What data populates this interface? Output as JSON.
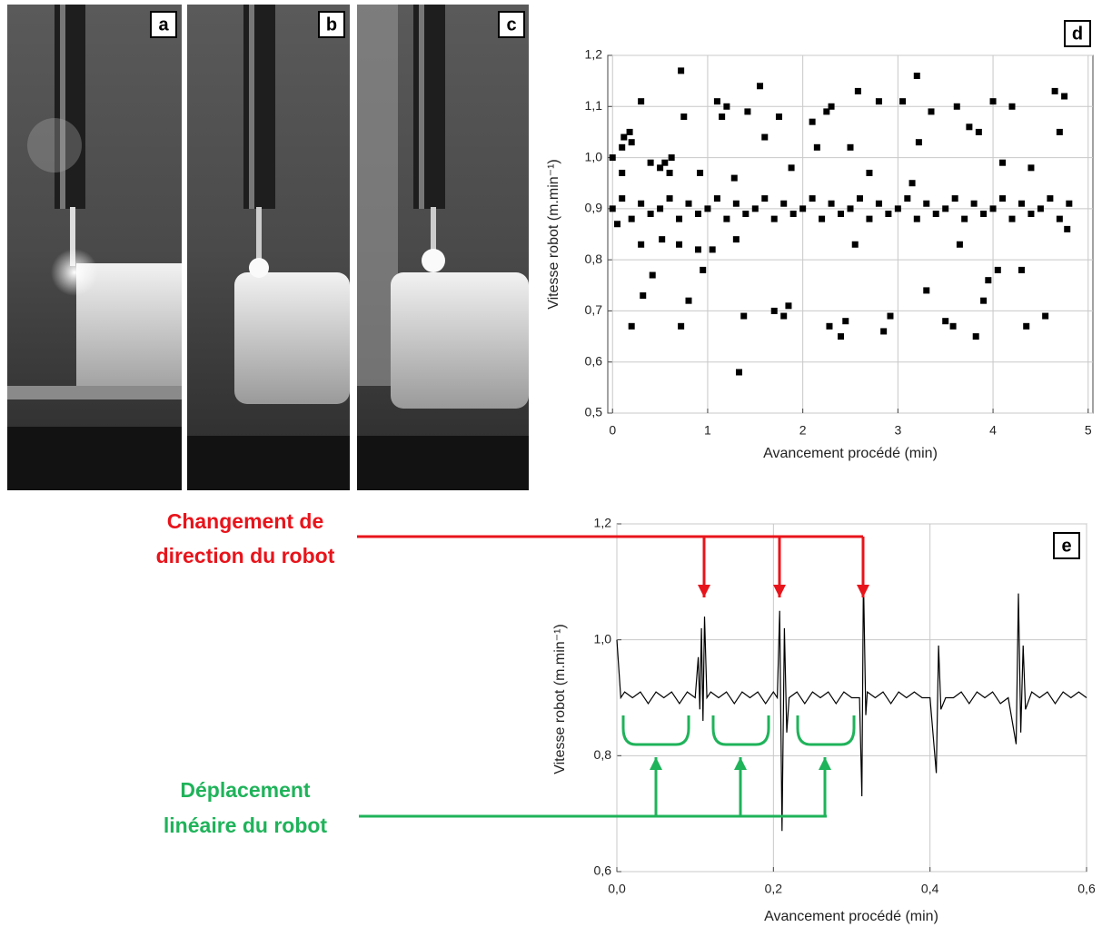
{
  "photos": {
    "labels": [
      "a",
      "b",
      "c"
    ]
  },
  "annotations": {
    "red": [
      "Changement de",
      "direction du robot"
    ],
    "green": [
      "Déplacement",
      "linéaire du robot"
    ]
  },
  "chart_data": [
    {
      "type": "scatter",
      "panel_label": "d",
      "xlabel": "Avancement procédé (min)",
      "ylabel": "Vitesse robot (m.min⁻¹)",
      "color": "#000000",
      "grid": true,
      "xlim": [
        -0.05,
        5.05
      ],
      "ylim": [
        0.5,
        1.2
      ],
      "xticks": [
        0,
        1,
        2,
        3,
        4,
        5
      ],
      "yticks": [
        {
          "value": 0.5,
          "label": "0,5"
        },
        {
          "value": 0.6,
          "label": "0,6"
        },
        {
          "value": 0.7,
          "label": "0,7"
        },
        {
          "value": 0.8,
          "label": "0,8"
        },
        {
          "value": 0.9,
          "label": "0,9"
        },
        {
          "value": 1.0,
          "label": "1,0"
        },
        {
          "value": 1.1,
          "label": "1,1"
        },
        {
          "value": 1.2,
          "label": "1,2"
        }
      ],
      "x": [
        0,
        0.1,
        0.2,
        0.3,
        0.4,
        0.5,
        0.6,
        0.7,
        0.8,
        0.9,
        1.0,
        1.1,
        1.2,
        1.3,
        1.4,
        1.5,
        1.6,
        1.7,
        1.8,
        1.9,
        2.0,
        2.1,
        2.2,
        2.3,
        2.4,
        2.5,
        2.6,
        2.7,
        2.8,
        2.9,
        3.0,
        3.1,
        3.2,
        3.3,
        3.4,
        3.5,
        3.6,
        3.7,
        3.8,
        3.9,
        4.0,
        4.1,
        4.2,
        4.3,
        4.4,
        4.5,
        4.6,
        4.7,
        4.8,
        0.0,
        0.05,
        0.1,
        0.1,
        0.12,
        0.18,
        0.2,
        0.2,
        0.3,
        0.3,
        0.32,
        0.4,
        0.42,
        0.5,
        0.52,
        0.55,
        0.6,
        0.62,
        0.7,
        0.72,
        0.72,
        0.75,
        0.8,
        0.9,
        0.92,
        0.95,
        1.05,
        1.1,
        1.15,
        1.2,
        1.28,
        1.3,
        1.33,
        1.38,
        1.42,
        1.55,
        1.6,
        1.7,
        1.75,
        1.8,
        1.85,
        1.88,
        2.1,
        2.15,
        2.25,
        2.28,
        2.3,
        2.4,
        2.45,
        2.5,
        2.55,
        2.58,
        2.7,
        2.8,
        2.85,
        2.92,
        3.05,
        3.15,
        3.2,
        3.22,
        3.3,
        3.35,
        3.5,
        3.58,
        3.62,
        3.65,
        3.75,
        3.82,
        3.85,
        3.9,
        3.95,
        4.0,
        4.05,
        4.1,
        4.2,
        4.3,
        4.35,
        4.4,
        4.55,
        4.65,
        4.7,
        4.75,
        4.78
      ],
      "values": [
        0.9,
        0.92,
        0.88,
        0.91,
        0.89,
        0.9,
        0.92,
        0.88,
        0.91,
        0.89,
        0.9,
        0.92,
        0.88,
        0.91,
        0.89,
        0.9,
        0.92,
        0.88,
        0.91,
        0.89,
        0.9,
        0.92,
        0.88,
        0.91,
        0.89,
        0.9,
        0.92,
        0.88,
        0.91,
        0.89,
        0.9,
        0.92,
        0.88,
        0.91,
        0.89,
        0.9,
        0.92,
        0.88,
        0.91,
        0.89,
        0.9,
        0.92,
        0.88,
        0.91,
        0.89,
        0.9,
        0.92,
        0.88,
        0.91,
        1.0,
        0.87,
        0.97,
        1.02,
        1.04,
        1.05,
        1.03,
        0.67,
        1.11,
        0.83,
        0.73,
        0.99,
        0.77,
        0.98,
        0.84,
        0.99,
        0.97,
        1.0,
        0.83,
        0.67,
        1.17,
        1.08,
        0.72,
        0.82,
        0.97,
        0.78,
        0.82,
        1.11,
        1.08,
        1.1,
        0.96,
        0.84,
        0.58,
        0.69,
        1.09,
        1.14,
        1.04,
        0.7,
        1.08,
        0.69,
        0.71,
        0.98,
        1.07,
        1.02,
        1.09,
        0.67,
        1.1,
        0.65,
        0.68,
        1.02,
        0.83,
        1.13,
        0.97,
        1.11,
        0.66,
        0.69,
        1.11,
        0.95,
        1.16,
        1.03,
        0.74,
        1.09,
        0.68,
        0.67,
        1.1,
        0.83,
        1.06,
        0.65,
        1.05,
        0.72,
        0.76,
        1.11,
        0.78,
        0.99,
        1.1,
        0.78,
        0.67,
        0.98,
        0.69,
        1.13,
        1.05,
        1.12,
        0.86
      ]
    },
    {
      "type": "line",
      "panel_label": "e",
      "xlabel": "Avancement procédé (min)",
      "ylabel": "Vitesse robot (m.min⁻¹)",
      "color": "#000000",
      "grid": true,
      "xlim": [
        0,
        0.6
      ],
      "ylim": [
        0.6,
        1.2
      ],
      "xticks": [
        {
          "value": 0,
          "label": "0,0"
        },
        {
          "value": 0.2,
          "label": "0,2"
        },
        {
          "value": 0.4,
          "label": "0,4"
        },
        {
          "value": 0.6,
          "label": "0,6"
        }
      ],
      "yticks": [
        {
          "value": 0.6,
          "label": "0,6"
        },
        {
          "value": 0.8,
          "label": "0,8"
        },
        {
          "value": 1.0,
          "label": "1,0"
        },
        {
          "value": 1.2,
          "label": "1,2"
        }
      ],
      "x": [
        0,
        0.005,
        0.01,
        0.02,
        0.03,
        0.04,
        0.05,
        0.06,
        0.07,
        0.08,
        0.09,
        0.1,
        0.104,
        0.106,
        0.108,
        0.11,
        0.112,
        0.115,
        0.12,
        0.13,
        0.14,
        0.15,
        0.16,
        0.17,
        0.18,
        0.19,
        0.2,
        0.205,
        0.208,
        0.211,
        0.214,
        0.217,
        0.22,
        0.23,
        0.24,
        0.25,
        0.26,
        0.27,
        0.28,
        0.29,
        0.3,
        0.31,
        0.313,
        0.315,
        0.318,
        0.32,
        0.33,
        0.34,
        0.35,
        0.36,
        0.37,
        0.38,
        0.39,
        0.4,
        0.408,
        0.411,
        0.414,
        0.42,
        0.43,
        0.44,
        0.45,
        0.46,
        0.47,
        0.48,
        0.49,
        0.5,
        0.51,
        0.513,
        0.516,
        0.519,
        0.522,
        0.53,
        0.54,
        0.55,
        0.56,
        0.57,
        0.58,
        0.59,
        0.6
      ],
      "values": [
        1.0,
        0.9,
        0.91,
        0.9,
        0.91,
        0.89,
        0.91,
        0.9,
        0.91,
        0.89,
        0.91,
        0.9,
        0.97,
        0.88,
        1.02,
        0.86,
        1.04,
        0.9,
        0.91,
        0.9,
        0.91,
        0.89,
        0.91,
        0.9,
        0.91,
        0.89,
        0.91,
        0.9,
        1.05,
        0.67,
        1.02,
        0.84,
        0.9,
        0.91,
        0.89,
        0.91,
        0.9,
        0.91,
        0.89,
        0.91,
        0.9,
        0.9,
        0.73,
        1.11,
        0.87,
        0.91,
        0.9,
        0.91,
        0.89,
        0.91,
        0.9,
        0.91,
        0.9,
        0.9,
        0.77,
        0.99,
        0.88,
        0.9,
        0.9,
        0.91,
        0.89,
        0.91,
        0.9,
        0.91,
        0.89,
        0.9,
        0.82,
        1.08,
        0.84,
        0.99,
        0.88,
        0.91,
        0.9,
        0.91,
        0.89,
        0.91,
        0.9,
        0.91,
        0.9
      ]
    }
  ]
}
